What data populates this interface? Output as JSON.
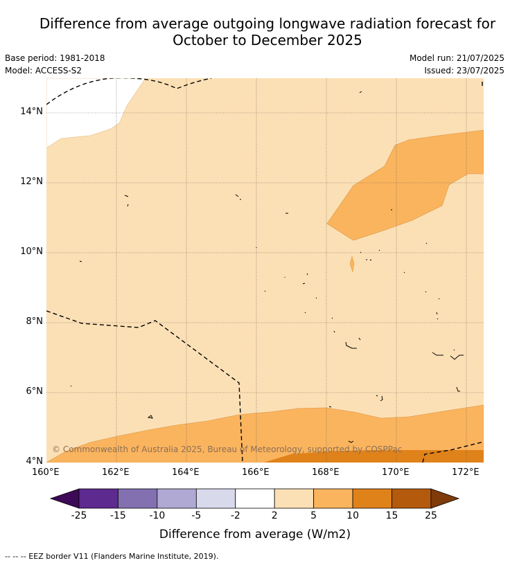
{
  "header": {
    "title_line1": "Difference from average outgoing longwave radiation forecast for",
    "title_line2": "October to December 2025",
    "base_period": "Base period: 1981-2018",
    "model": "Model: ACCESS-S2",
    "model_run": "Model run: 21/07/2025",
    "issued": "Issued: 23/07/2025"
  },
  "map": {
    "lon_ticks": [
      "160°E",
      "162°E",
      "164°E",
      "166°E",
      "168°E",
      "170°E",
      "172°E"
    ],
    "lat_ticks": [
      "14°N",
      "12°N",
      "10°N",
      "8°N",
      "6°N",
      "4°N"
    ],
    "lon_range": [
      160,
      172.5
    ],
    "lat_range": [
      4,
      15
    ],
    "copyright": "© Commonwealth of Australia 2025, Bureau of Meteorology, supported by COSPPac",
    "fill_colors": {
      "c2_5": "#fce0b5",
      "c5_10": "#fbb45e",
      "c10_15": "#e0821a"
    }
  },
  "colorbar": {
    "title": "Difference from average (W/m2)",
    "tick_labels": [
      "-25",
      "-15",
      "-10",
      "-5",
      "-2",
      "2",
      "5",
      "10",
      "15",
      "25"
    ],
    "colors": [
      "#3c0a57",
      "#5d2a8f",
      "#8370b0",
      "#b0a9d4",
      "#d9d9ec",
      "#ffffff",
      "#fce0b5",
      "#fbb45e",
      "#e0821a",
      "#b35a0d",
      "#7f3b0a"
    ]
  },
  "legend": {
    "eez_note": "--  --  -- EEZ border V11 (Flanders Marine Institute, 2019)."
  }
}
